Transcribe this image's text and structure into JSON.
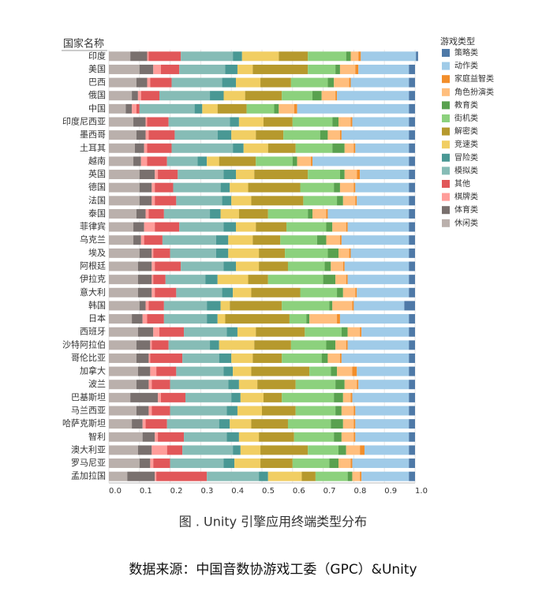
{
  "chart_data": {
    "type": "stacked_barh",
    "y_label": "国家名称",
    "legend_title": "游戏类型",
    "caption": "图 . Unity 引擎应用终端类型分布",
    "source": "数据来源：中国音数协游戏工委（GPC）&Unity",
    "categories": [
      "印度",
      "美国",
      "巴西",
      "俄国",
      "中国",
      "印度尼西亚",
      "墨西哥",
      "土耳其",
      "越南",
      "英国",
      "德国",
      "法国",
      "泰国",
      "菲律宾",
      "乌克兰",
      "埃及",
      "阿根廷",
      "伊拉克",
      "意大利",
      "韩国",
      "日本",
      "西班牙",
      "沙特阿拉伯",
      "哥伦比亚",
      "加拿大",
      "波兰",
      "巴基斯坦",
      "马兰西亚",
      "哈萨克斯坦",
      "智利",
      "澳大利亚",
      "罗马尼亚",
      "孟加拉国"
    ],
    "xlim": [
      0,
      1
    ],
    "xticks": [
      {
        "value": 0,
        "label": "0.0"
      },
      0.1,
      0.2,
      0.3,
      0.4,
      0.5,
      0.6,
      0.7,
      0.8,
      0.9,
      {
        "value": 1,
        "label": "1.0"
      }
    ],
    "grid": true,
    "legend": "right",
    "series": [
      {
        "name": "策略类",
        "color": "#4e79a7",
        "values": [
          0.007,
          0.02,
          0.02,
          0.02,
          0.02,
          0.02,
          0.02,
          0.02,
          0.02,
          0.02,
          0.02,
          0.02,
          0.02,
          0.02,
          0.02,
          0.02,
          0.02,
          0.02,
          0.02,
          0.035,
          0.02,
          0.02,
          0.02,
          0.02,
          0.02,
          0.02,
          0.02,
          0.02,
          0.02,
          0.02,
          0.02,
          0.02,
          0.02
        ]
      },
      {
        "name": "动作类",
        "color": "#a0cbe8",
        "values": [
          0.18,
          0.165,
          0.19,
          0.235,
          0.365,
          0.185,
          0.22,
          0.175,
          0.315,
          0.16,
          0.175,
          0.17,
          0.265,
          0.2,
          0.22,
          0.19,
          0.21,
          0.2,
          0.17,
          0.165,
          0.225,
          0.155,
          0.2,
          0.22,
          0.17,
          0.165,
          0.185,
          0.175,
          0.175,
          0.175,
          0.145,
          0.185,
          0.155
        ]
      },
      {
        "name": "家庭益智类",
        "color": "#f28e2b",
        "values": [
          0.008,
          0.01,
          0.005,
          0.005,
          0.01,
          0.005,
          0.005,
          0.005,
          0.005,
          0.01,
          0.005,
          0.005,
          0.005,
          0.005,
          0.005,
          0.005,
          0.005,
          0.005,
          0.005,
          0.005,
          0.01,
          0.005,
          0.005,
          0.005,
          0.015,
          0.005,
          0.005,
          0.005,
          0.005,
          0.005,
          0.015,
          0.005,
          0.005
        ]
      },
      {
        "name": "角色扮演类",
        "color": "#ffbe7d",
        "values": [
          0.025,
          0.05,
          0.05,
          0.045,
          0.05,
          0.04,
          0.04,
          0.03,
          0.045,
          0.04,
          0.045,
          0.04,
          0.045,
          0.045,
          0.045,
          0.035,
          0.04,
          0.035,
          0.04,
          0.065,
          0.09,
          0.04,
          0.035,
          0.04,
          0.05,
          0.04,
          0.025,
          0.04,
          0.035,
          0.04,
          0.045,
          0.04,
          0.025
        ]
      },
      {
        "name": "教育类",
        "color": "#59a14f",
        "values": [
          0.015,
          0.015,
          0.02,
          0.03,
          0.015,
          0.02,
          0.025,
          0.04,
          0.015,
          0.015,
          0.02,
          0.02,
          0.015,
          0.02,
          0.03,
          0.035,
          0.02,
          0.04,
          0.02,
          0.01,
          0.01,
          0.02,
          0.03,
          0.02,
          0.02,
          0.03,
          0.03,
          0.02,
          0.04,
          0.025,
          0.025,
          0.03,
          0.015
        ]
      },
      {
        "name": "街机类",
        "color": "#8cd17d",
        "values": [
          0.125,
          0.09,
          0.12,
          0.1,
          0.09,
          0.13,
          0.12,
          0.12,
          0.12,
          0.105,
          0.11,
          0.11,
          0.13,
          0.13,
          0.12,
          0.14,
          0.12,
          0.18,
          0.12,
          0.155,
          0.055,
          0.12,
          0.115,
          0.13,
          0.07,
          0.13,
          0.17,
          0.13,
          0.14,
          0.13,
          0.1,
          0.12,
          0.105
        ]
      },
      {
        "name": "解密类",
        "color": "#b6992d",
        "values": [
          0.095,
          0.18,
          0.1,
          0.12,
          0.095,
          0.095,
          0.09,
          0.09,
          0.12,
          0.175,
          0.17,
          0.17,
          0.095,
          0.1,
          0.09,
          0.085,
          0.095,
          0.065,
          0.16,
          0.17,
          0.21,
          0.16,
          0.12,
          0.095,
          0.19,
          0.125,
          0.06,
          0.11,
          0.12,
          0.115,
          0.155,
          0.105,
          0.045
        ]
      },
      {
        "name": "竞速类",
        "color": "#f1ce63",
        "values": [
          0.12,
          0.05,
          0.08,
          0.07,
          0.05,
          0.08,
          0.08,
          0.08,
          0.04,
          0.06,
          0.06,
          0.065,
          0.06,
          0.065,
          0.08,
          0.1,
          0.075,
          0.1,
          0.06,
          0.03,
          0.025,
          0.06,
          0.115,
          0.07,
          0.06,
          0.06,
          0.075,
          0.08,
          0.07,
          0.065,
          0.065,
          0.085,
          0.11
        ]
      },
      {
        "name": "冒险类",
        "color": "#499894",
        "values": [
          0.03,
          0.04,
          0.045,
          0.045,
          0.025,
          0.03,
          0.045,
          0.035,
          0.03,
          0.04,
          0.03,
          0.03,
          0.035,
          0.04,
          0.04,
          0.04,
          0.04,
          0.04,
          0.035,
          0.045,
          0.035,
          0.035,
          0.03,
          0.04,
          0.03,
          0.035,
          0.03,
          0.035,
          0.035,
          0.04,
          0.025,
          0.035,
          0.03
        ]
      },
      {
        "name": "模拟类",
        "color": "#86bcb6",
        "values": [
          0.17,
          0.15,
          0.165,
          0.165,
          0.18,
          0.2,
          0.14,
          0.2,
          0.1,
          0.15,
          0.155,
          0.15,
          0.15,
          0.145,
          0.175,
          0.15,
          0.14,
          0.13,
          0.15,
          0.14,
          0.14,
          0.14,
          0.135,
          0.12,
          0.155,
          0.19,
          0.15,
          0.185,
          0.17,
          0.14,
          0.165,
          0.175,
          0.17
        ]
      },
      {
        "name": "其他",
        "color": "#e15759",
        "values": [
          0.105,
          0.06,
          0.07,
          0.06,
          0.01,
          0.07,
          0.085,
          0.08,
          0.065,
          0.065,
          0.06,
          0.07,
          0.05,
          0.08,
          0.06,
          0.055,
          0.085,
          0.04,
          0.07,
          0.05,
          0.055,
          0.08,
          0.055,
          0.105,
          0.065,
          0.06,
          0.08,
          0.06,
          0.07,
          0.085,
          0.05,
          0.055,
          0.165
        ]
      },
      {
        "name": "棋牌类",
        "color": "#ff9d9a",
        "values": [
          0.005,
          0.025,
          0.01,
          0.01,
          0.015,
          0.005,
          0.01,
          0.01,
          0.02,
          0.01,
          0.01,
          0.01,
          0.01,
          0.035,
          0.01,
          0.005,
          0.01,
          0.005,
          0.01,
          0.01,
          0.015,
          0.02,
          0.005,
          0.005,
          0.02,
          0.01,
          0.01,
          0.01,
          0.01,
          0.01,
          0.05,
          0.01,
          0.005
        ]
      },
      {
        "name": "体育类",
        "color": "#79706e",
        "values": [
          0.055,
          0.045,
          0.035,
          0.02,
          0.02,
          0.04,
          0.03,
          0.03,
          0.025,
          0.05,
          0.04,
          0.04,
          0.03,
          0.035,
          0.025,
          0.04,
          0.045,
          0.045,
          0.045,
          0.02,
          0.035,
          0.05,
          0.045,
          0.04,
          0.04,
          0.04,
          0.09,
          0.04,
          0.035,
          0.04,
          0.045,
          0.035,
          0.09
        ]
      },
      {
        "name": "休闲类",
        "color": "#bab0ac",
        "values": [
          0.07,
          0.1,
          0.09,
          0.075,
          0.055,
          0.08,
          0.09,
          0.085,
          0.08,
          0.1,
          0.1,
          0.1,
          0.09,
          0.08,
          0.08,
          0.1,
          0.095,
          0.095,
          0.095,
          0.1,
          0.075,
          0.095,
          0.09,
          0.09,
          0.095,
          0.09,
          0.07,
          0.09,
          0.075,
          0.11,
          0.095,
          0.1,
          0.06
        ]
      }
    ]
  }
}
